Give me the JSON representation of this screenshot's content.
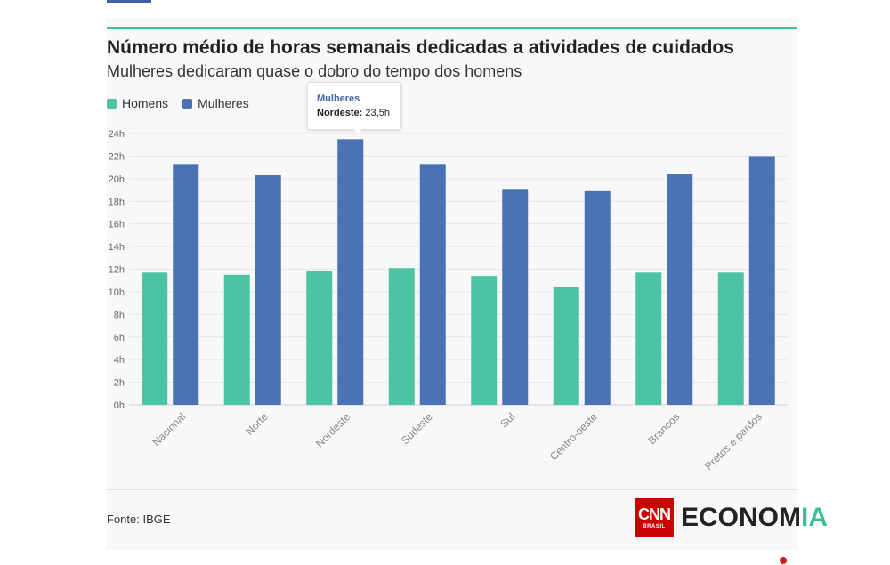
{
  "header": {
    "title": "Número médio de horas semanais dedicadas a atividades de cuidados",
    "subtitle": "Mulheres dedicaram quase o dobro do tempo dos homens"
  },
  "legend": {
    "items": [
      {
        "label": "Homens",
        "color": "#4cc3a2"
      },
      {
        "label": "Mulheres",
        "color": "#4a72b5"
      }
    ]
  },
  "tooltip": {
    "series": "Mulheres",
    "category": "Nordeste:",
    "value": "23,5h"
  },
  "footer": {
    "source": "Fonte: IBGE",
    "logo_cnn": "CNN",
    "logo_brasil": "BRASIL",
    "logo_economia_main": "ECONOM",
    "logo_economia_accent": "IA"
  },
  "chart_data": {
    "type": "bar",
    "title": "Número médio de horas semanais dedicadas a atividades de cuidados",
    "subtitle": "Mulheres dedicaram quase o dobro do tempo dos homens",
    "categories": [
      "Nacional",
      "Norte",
      "Nordeste",
      "Sudeste",
      "Sul",
      "Centro-oeste",
      "Brancos",
      "Pretos e pardos"
    ],
    "series": [
      {
        "name": "Homens",
        "color": "#4cc3a2",
        "values": [
          11.7,
          11.5,
          11.8,
          12.1,
          11.4,
          10.4,
          11.7,
          11.7
        ]
      },
      {
        "name": "Mulheres",
        "color": "#4a72b5",
        "values": [
          21.3,
          20.3,
          23.5,
          21.3,
          19.1,
          18.9,
          20.4,
          22.0
        ]
      }
    ],
    "yticks": [
      "0h",
      "2h",
      "4h",
      "6h",
      "8h",
      "10h",
      "12h",
      "14h",
      "16h",
      "18h",
      "20h",
      "22h",
      "24h"
    ],
    "ylim": [
      0,
      24
    ],
    "grid": true,
    "legend_position": "top-left"
  }
}
